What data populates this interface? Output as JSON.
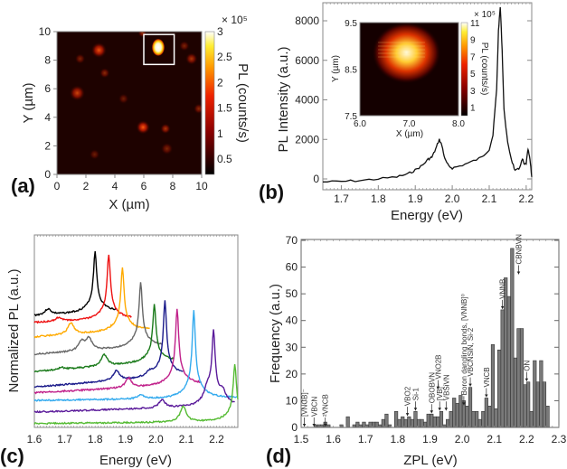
{
  "panels": {
    "a": {
      "label": "(a)",
      "xlabel": "X (µm)",
      "ylabel": "Y (µm)",
      "cbar_label": "PL (counts/s)",
      "cbar_scale": "× 10⁵"
    },
    "b": {
      "label": "(b)",
      "xlabel": "Energy (eV)",
      "ylabel": "PL Intensity (a.u.)",
      "inset_xlabel": "X (µm)",
      "inset_ylabel": "Y (µm)",
      "inset_cbar_label": "PL (counts/s)",
      "inset_cbar_scale": "× 10⁵"
    },
    "c": {
      "label": "(c)",
      "xlabel": "Energy (eV)",
      "ylabel": "Normalized PL (a.u.)"
    },
    "d": {
      "label": "(d)",
      "xlabel": "ZPL (eV)",
      "ylabel": "Frequency (a.u.)"
    }
  },
  "chart_data": [
    {
      "id": "a",
      "type": "heatmap",
      "xlim": [
        0,
        10
      ],
      "ylim": [
        0,
        10
      ],
      "clim": [
        0.2,
        3.0
      ],
      "xticks": [
        "0",
        "2",
        "4",
        "6",
        "8",
        "10"
      ],
      "yticks": [
        "0",
        "2",
        "4",
        "6",
        "8",
        "10"
      ],
      "cbar_ticks": [
        "0.5",
        "1",
        "1.5",
        "2",
        "2.5",
        "3"
      ],
      "background_level": 0.3,
      "spots": [
        {
          "x": 7.0,
          "y": 8.9,
          "v": 3.0,
          "r": 0.45
        },
        {
          "x": 2.9,
          "y": 8.7,
          "v": 1.3,
          "r": 0.45
        },
        {
          "x": 1.4,
          "y": 5.7,
          "v": 1.1,
          "r": 0.45
        },
        {
          "x": 5.95,
          "y": 3.3,
          "v": 1.4,
          "r": 0.4
        },
        {
          "x": 7.5,
          "y": 3.2,
          "v": 0.9,
          "r": 0.3
        },
        {
          "x": 9.3,
          "y": 8.1,
          "v": 0.9,
          "r": 0.35
        },
        {
          "x": 1.6,
          "y": 8.1,
          "v": 0.6,
          "r": 0.3
        },
        {
          "x": 3.3,
          "y": 7.1,
          "v": 0.7,
          "r": 0.3
        },
        {
          "x": 9.8,
          "y": 4.6,
          "v": 0.7,
          "r": 0.3
        },
        {
          "x": 7.6,
          "y": 1.8,
          "v": 0.6,
          "r": 0.35
        },
        {
          "x": 5.9,
          "y": 9.9,
          "v": 0.8,
          "r": 0.25
        },
        {
          "x": 8.8,
          "y": 9.0,
          "v": 0.6,
          "r": 0.3
        },
        {
          "x": 4.6,
          "y": 5.3,
          "v": 0.5,
          "r": 0.3
        },
        {
          "x": 2.6,
          "y": 1.4,
          "v": 0.5,
          "r": 0.3
        }
      ],
      "highlight_box": {
        "x0": 6.0,
        "x1": 8.1,
        "y0": 7.7,
        "y1": 9.8
      }
    },
    {
      "id": "b",
      "type": "line",
      "xlim": [
        1.65,
        2.215
      ],
      "ylim": [
        -300,
        8800
      ],
      "xticks": [
        "1.7",
        "1.8",
        "1.9",
        "2.0",
        "2.1",
        "2.2"
      ],
      "yticks": [
        "0",
        "2000",
        "4000",
        "6000",
        "8000"
      ],
      "x": [
        1.65,
        1.7,
        1.75,
        1.8,
        1.85,
        1.88,
        1.9,
        1.92,
        1.935,
        1.945,
        1.955,
        1.965,
        1.972,
        1.98,
        1.99,
        2.0,
        2.02,
        2.05,
        2.08,
        2.1,
        2.11,
        2.12,
        2.125,
        2.13,
        2.135,
        2.14,
        2.15,
        2.16,
        2.17,
        2.18,
        2.19,
        2.195,
        2.2,
        2.205,
        2.21,
        2.215
      ],
      "y": [
        -150,
        -130,
        -80,
        0,
        100,
        250,
        450,
        700,
        1000,
        1100,
        1500,
        2000,
        1700,
        1000,
        650,
        550,
        650,
        850,
        1100,
        1500,
        2200,
        4500,
        7500,
        8700,
        6500,
        3500,
        1800,
        1000,
        400,
        500,
        1000,
        700,
        800,
        1500,
        1000,
        100
      ],
      "inset": {
        "type": "heatmap",
        "xlim": [
          6.0,
          8.0
        ],
        "ylim": [
          7.5,
          9.5
        ],
        "clim": [
          0,
          11
        ],
        "xticks": [
          "6.0",
          "7.0",
          "8.0"
        ],
        "yticks": [
          "7.5",
          "8.5",
          "9.5"
        ],
        "cbar_ticks": [
          "1",
          "3",
          "5",
          "7",
          "9",
          "11"
        ],
        "spot": {
          "x": 7.0,
          "y": 8.85,
          "v": 11
        }
      }
    },
    {
      "id": "c",
      "type": "line",
      "xlim": [
        1.6,
        2.27
      ],
      "ylim": [
        0,
        1
      ],
      "xticks": [
        "1.6",
        "1.7",
        "1.8",
        "1.9",
        "2.0",
        "2.1",
        "2.2"
      ],
      "series": [
        {
          "color": "#000000",
          "start": 1.6,
          "end": 1.87,
          "offset": 0.58,
          "slope": 0.2,
          "peak": 1.8,
          "amp": 0.32,
          "side": [
            [
              1.645,
              0.03
            ]
          ]
        },
        {
          "color": "#ee1111",
          "start": 1.6,
          "end": 1.92,
          "offset": 0.545,
          "slope": 0.15,
          "peak": 1.845,
          "amp": 0.34,
          "side": [
            [
              1.68,
              0.02
            ]
          ]
        },
        {
          "color": "#ffaa00",
          "start": 1.6,
          "end": 1.98,
          "offset": 0.47,
          "slope": 0.25,
          "peak": 1.89,
          "amp": 0.33,
          "side": [
            [
              1.72,
              0.06
            ]
          ]
        },
        {
          "color": "#666666",
          "start": 1.6,
          "end": 2.02,
          "offset": 0.38,
          "slope": 0.25,
          "peak": 1.95,
          "amp": 0.34,
          "side": [
            [
              1.755,
              0.05
            ],
            [
              1.78,
              0.06
            ]
          ]
        },
        {
          "color": "#1a7a1a",
          "start": 1.6,
          "end": 2.06,
          "offset": 0.29,
          "slope": 0.3,
          "peak": 1.995,
          "amp": 0.3,
          "side": [
            [
              1.69,
              0.01
            ],
            [
              1.83,
              0.06
            ]
          ]
        },
        {
          "color": "#1a1a8a",
          "start": 1.6,
          "end": 2.09,
          "offset": 0.21,
          "slope": 0.3,
          "peak": 2.03,
          "amp": 0.4,
          "side": [
            [
              1.87,
              0.05
            ],
            [
              1.98,
              0.02
            ]
          ]
        },
        {
          "color": "#c0208a",
          "start": 1.6,
          "end": 2.15,
          "offset": 0.18,
          "slope": 0.2,
          "peak": 2.07,
          "amp": 0.4,
          "side": [
            [
              1.91,
              0.05
            ]
          ]
        },
        {
          "color": "#33aaee",
          "start": 1.6,
          "end": 2.27,
          "offset": 0.14,
          "slope": 0.05,
          "peak": 2.125,
          "amp": 0.46,
          "side": [
            [
              1.95,
              0.02
            ]
          ]
        },
        {
          "color": "#5a1a9a",
          "start": 1.6,
          "end": 2.26,
          "offset": 0.08,
          "slope": 0.12,
          "peak": 2.19,
          "amp": 0.38,
          "side": [
            [
              2.02,
              0.04
            ],
            [
              2.17,
              0.06
            ],
            [
              2.22,
              0.05
            ]
          ]
        },
        {
          "color": "#55bb33",
          "start": 1.6,
          "end": 2.27,
          "offset": 0.02,
          "slope": 0.04,
          "peak": 2.26,
          "amp": 0.3,
          "side": [
            [
              2.09,
              0.08
            ]
          ]
        }
      ]
    },
    {
      "id": "d",
      "type": "bar",
      "xlim": [
        1.5,
        2.3
      ],
      "ylim": [
        0,
        70
      ],
      "bin_width": 0.01,
      "xticks": [
        "1.5",
        "1.6",
        "1.7",
        "1.8",
        "1.9",
        "2.0",
        "2.1",
        "2.2",
        "2.3"
      ],
      "yticks": [
        "0",
        "10",
        "20",
        "30",
        "40",
        "50",
        "60",
        "70"
      ],
      "bin_start": 1.54,
      "values": [
        1,
        1,
        1,
        2,
        1,
        0,
        0,
        0,
        1,
        0,
        4,
        0,
        1,
        2,
        1,
        2,
        1,
        2,
        2,
        2,
        1,
        3,
        5,
        1,
        0,
        6,
        3,
        4,
        3,
        4,
        3,
        6,
        3,
        3,
        2,
        5,
        5,
        4,
        4,
        6,
        1,
        3,
        6,
        11,
        9,
        12,
        10,
        8,
        15,
        6,
        6,
        3,
        6,
        11,
        8,
        31,
        7,
        29,
        44,
        56,
        49,
        67,
        26,
        37,
        37,
        16,
        17,
        6,
        25,
        17,
        25,
        17,
        8
      ],
      "annotations": [
        {
          "text": "[VNCB]⁻",
          "x": 1.51,
          "tip": 0
        },
        {
          "text": "VBCN",
          "x": 1.54,
          "tip": 0
        },
        {
          "text": "²VNCB",
          "x": 1.575,
          "tip": 0
        },
        {
          "text": "VBO2",
          "x": 1.83,
          "tip": 4
        },
        {
          "text": "Si-1",
          "x": 1.855,
          "tip": 6
        },
        {
          "text": "OBOBVN",
          "x": 1.905,
          "tip": 5
        },
        {
          "text": "VNO2B",
          "x": 1.925,
          "tip": 14
        },
        {
          "text": "[VB]⁻",
          "x": 1.93,
          "tip": 6
        },
        {
          "text": "VBSiVN",
          "x": 1.95,
          "tip": 6
        },
        {
          "text": "Boron dangling bonds, [VNNB]⁰",
          "x": 2.005,
          "tip": 8
        },
        {
          "text": "VBCNSiN, Si-2",
          "x": 2.025,
          "tip": 15
        },
        {
          "text": "VNCB",
          "x": 2.075,
          "tip": 11
        },
        {
          "text": "VNNB",
          "x": 2.125,
          "tip": 44
        },
        {
          "text": "CBNBVN",
          "x": 2.175,
          "tip": 57
        },
        {
          "text": "ON",
          "x": 2.2,
          "tip": 17
        }
      ]
    }
  ]
}
